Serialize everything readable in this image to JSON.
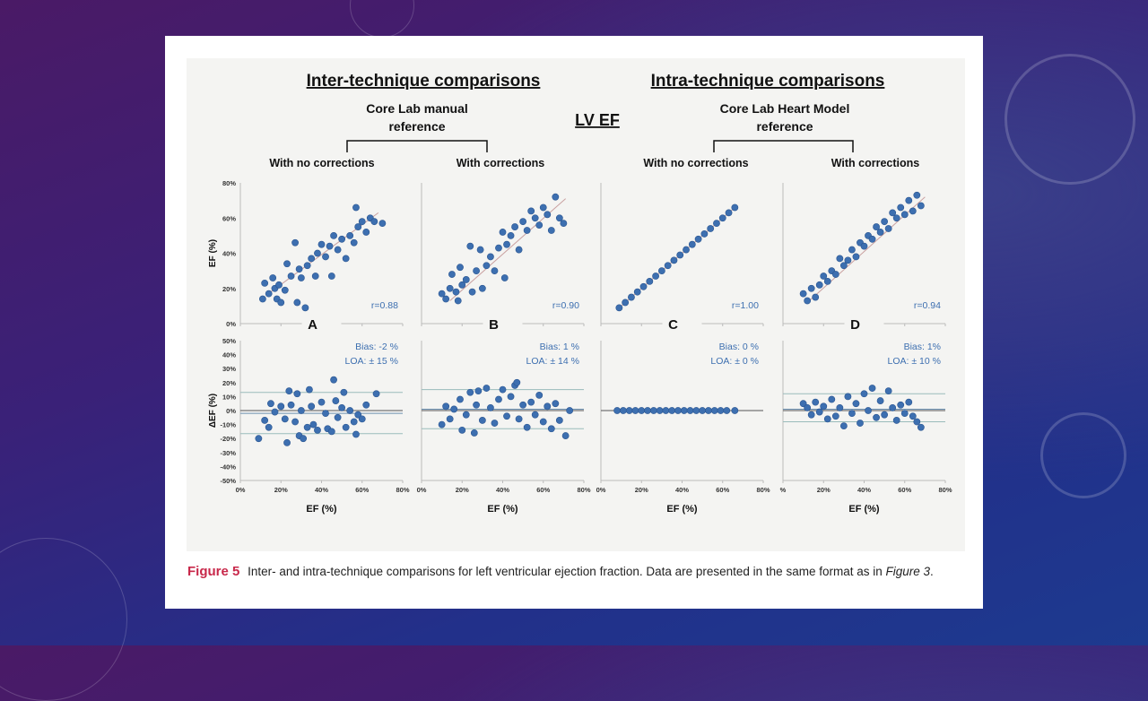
{
  "figure": {
    "inter_title": "Inter-technique comparisons",
    "intra_title": "Intra-technique comparisons",
    "center_label": "LV EF",
    "inter_ref_line1": "Core Lab manual",
    "inter_ref_line2": "reference",
    "intra_ref_line1": "Core Lab Heart Model",
    "intra_ref_line2": "reference",
    "col_labels": [
      "With no corrections",
      "With corrections",
      "With no corrections",
      "With corrections"
    ],
    "caption_label": "Figure 5",
    "caption_text": "Inter- and intra-technique comparisons for left ventricular ejection fraction. Data are presented in the same format as in ",
    "caption_ref": "Figure 3",
    "caption_end": ".",
    "caption_color": "#c8284a",
    "point_color": "#3d6fb0"
  },
  "chart_data": [
    {
      "type": "scatter",
      "panel": "A",
      "ylabel": "EF (%)",
      "ylim": [
        0,
        80
      ],
      "xlim": [
        0,
        80
      ],
      "yticks": [
        "80%",
        "60%",
        "40%",
        "20%",
        "0%"
      ],
      "annotation": "r=0.88",
      "fit": [
        [
          15,
          18
        ],
        [
          68,
          63
        ]
      ],
      "points": [
        [
          11,
          14
        ],
        [
          12,
          23
        ],
        [
          14,
          17
        ],
        [
          16,
          26
        ],
        [
          17,
          20
        ],
        [
          18,
          14
        ],
        [
          19,
          22
        ],
        [
          20,
          12
        ],
        [
          22,
          19
        ],
        [
          23,
          34
        ],
        [
          25,
          27
        ],
        [
          27,
          46
        ],
        [
          28,
          12
        ],
        [
          29,
          31
        ],
        [
          30,
          26
        ],
        [
          32,
          9
        ],
        [
          33,
          33
        ],
        [
          35,
          37
        ],
        [
          37,
          27
        ],
        [
          38,
          40
        ],
        [
          40,
          45
        ],
        [
          42,
          38
        ],
        [
          44,
          44
        ],
        [
          45,
          27
        ],
        [
          46,
          50
        ],
        [
          48,
          42
        ],
        [
          50,
          48
        ],
        [
          52,
          37
        ],
        [
          54,
          50
        ],
        [
          56,
          46
        ],
        [
          57,
          66
        ],
        [
          58,
          55
        ],
        [
          60,
          58
        ],
        [
          62,
          52
        ],
        [
          64,
          60
        ],
        [
          66,
          58
        ],
        [
          70,
          57
        ]
      ]
    },
    {
      "type": "scatter",
      "panel": "B",
      "xlim": [
        0,
        80
      ],
      "ylim": [
        0,
        80
      ],
      "annotation": "r=0.90",
      "fit": [
        [
          14,
          13
        ],
        [
          71,
          71
        ]
      ],
      "points": [
        [
          10,
          17
        ],
        [
          12,
          14
        ],
        [
          14,
          20
        ],
        [
          15,
          28
        ],
        [
          17,
          18
        ],
        [
          18,
          13
        ],
        [
          19,
          32
        ],
        [
          20,
          22
        ],
        [
          22,
          25
        ],
        [
          24,
          44
        ],
        [
          25,
          18
        ],
        [
          27,
          30
        ],
        [
          29,
          42
        ],
        [
          30,
          20
        ],
        [
          32,
          33
        ],
        [
          34,
          38
        ],
        [
          36,
          30
        ],
        [
          38,
          43
        ],
        [
          40,
          52
        ],
        [
          41,
          26
        ],
        [
          42,
          45
        ],
        [
          44,
          50
        ],
        [
          46,
          55
        ],
        [
          48,
          42
        ],
        [
          50,
          58
        ],
        [
          52,
          53
        ],
        [
          54,
          64
        ],
        [
          56,
          60
        ],
        [
          58,
          56
        ],
        [
          60,
          66
        ],
        [
          62,
          62
        ],
        [
          64,
          53
        ],
        [
          66,
          72
        ],
        [
          68,
          60
        ],
        [
          70,
          57
        ]
      ]
    },
    {
      "type": "scatter",
      "panel": "C",
      "xlim": [
        0,
        80
      ],
      "ylim": [
        0,
        80
      ],
      "annotation": "r=1.00",
      "fit": [
        [
          9,
          9
        ],
        [
          66,
          66
        ]
      ],
      "points": [
        [
          9,
          9
        ],
        [
          12,
          12
        ],
        [
          15,
          15
        ],
        [
          18,
          18
        ],
        [
          21,
          21
        ],
        [
          24,
          24
        ],
        [
          27,
          27
        ],
        [
          30,
          30
        ],
        [
          33,
          33
        ],
        [
          36,
          36
        ],
        [
          39,
          39
        ],
        [
          42,
          42
        ],
        [
          45,
          45
        ],
        [
          48,
          48
        ],
        [
          51,
          51
        ],
        [
          54,
          54
        ],
        [
          57,
          57
        ],
        [
          60,
          60
        ],
        [
          63,
          63
        ],
        [
          66,
          66
        ]
      ]
    },
    {
      "type": "scatter",
      "panel": "D",
      "xlim": [
        0,
        80
      ],
      "ylim": [
        0,
        80
      ],
      "annotation": "r=0.94",
      "fit": [
        [
          12,
          12
        ],
        [
          70,
          72
        ]
      ],
      "points": [
        [
          10,
          17
        ],
        [
          12,
          13
        ],
        [
          14,
          20
        ],
        [
          16,
          15
        ],
        [
          18,
          22
        ],
        [
          20,
          27
        ],
        [
          22,
          24
        ],
        [
          24,
          30
        ],
        [
          26,
          28
        ],
        [
          28,
          37
        ],
        [
          30,
          33
        ],
        [
          32,
          36
        ],
        [
          34,
          42
        ],
        [
          36,
          38
        ],
        [
          38,
          46
        ],
        [
          40,
          44
        ],
        [
          42,
          50
        ],
        [
          44,
          48
        ],
        [
          46,
          55
        ],
        [
          48,
          52
        ],
        [
          50,
          58
        ],
        [
          52,
          54
        ],
        [
          54,
          63
        ],
        [
          56,
          60
        ],
        [
          58,
          66
        ],
        [
          60,
          62
        ],
        [
          62,
          70
        ],
        [
          64,
          64
        ],
        [
          66,
          73
        ],
        [
          68,
          67
        ]
      ]
    },
    {
      "type": "scatter",
      "panel": "A-bland-altman",
      "xlabel": "EF (%)",
      "ylabel": "ΔEF (%)",
      "xlim": [
        0,
        80
      ],
      "ylim": [
        -50,
        50
      ],
      "xticks": [
        "0%",
        "20%",
        "40%",
        "60%",
        "80%"
      ],
      "yticks": [
        "50%",
        "40%",
        "30%",
        "20%",
        "10%",
        "0%",
        "-10%",
        "-20%",
        "-30%",
        "-40%",
        "-50%"
      ],
      "bias_text": "Bias: -2 %",
      "loa_text": "LOA: ± 15 %",
      "lines": [
        13,
        -2,
        -16.5
      ],
      "points": [
        [
          9,
          -20
        ],
        [
          12,
          -7
        ],
        [
          14,
          -12
        ],
        [
          15,
          5
        ],
        [
          17,
          -1
        ],
        [
          20,
          3
        ],
        [
          22,
          -6
        ],
        [
          23,
          -23
        ],
        [
          24,
          14
        ],
        [
          25,
          4
        ],
        [
          27,
          -8
        ],
        [
          28,
          12
        ],
        [
          29,
          -18
        ],
        [
          30,
          0
        ],
        [
          31,
          -20
        ],
        [
          33,
          -12
        ],
        [
          34,
          15
        ],
        [
          35,
          3
        ],
        [
          36,
          -10
        ],
        [
          38,
          -14
        ],
        [
          40,
          6
        ],
        [
          42,
          -2
        ],
        [
          43,
          -13
        ],
        [
          45,
          -15
        ],
        [
          46,
          22
        ],
        [
          47,
          7
        ],
        [
          48,
          -5
        ],
        [
          50,
          2
        ],
        [
          51,
          13
        ],
        [
          52,
          -12
        ],
        [
          54,
          0
        ],
        [
          56,
          -8
        ],
        [
          57,
          -17
        ],
        [
          58,
          -3
        ],
        [
          60,
          -6
        ],
        [
          62,
          4
        ],
        [
          67,
          12
        ]
      ]
    },
    {
      "type": "scatter",
      "panel": "B-bland-altman",
      "xlabel": "EF (%)",
      "xlim": [
        0,
        80
      ],
      "ylim": [
        -50,
        50
      ],
      "xticks": [
        "0%",
        "20%",
        "40%",
        "60%",
        "80%"
      ],
      "bias_text": "Bias: 1 %",
      "loa_text": "LOA: ± 14 %",
      "lines": [
        15,
        1,
        -13
      ],
      "points": [
        [
          10,
          -10
        ],
        [
          12,
          3
        ],
        [
          14,
          -6
        ],
        [
          16,
          1
        ],
        [
          19,
          8
        ],
        [
          20,
          -14
        ],
        [
          22,
          -3
        ],
        [
          24,
          13
        ],
        [
          26,
          -16
        ],
        [
          27,
          4
        ],
        [
          28,
          14
        ],
        [
          30,
          -7
        ],
        [
          32,
          16
        ],
        [
          34,
          2
        ],
        [
          36,
          -9
        ],
        [
          38,
          8
        ],
        [
          40,
          15
        ],
        [
          42,
          -4
        ],
        [
          44,
          10
        ],
        [
          46,
          18
        ],
        [
          47,
          20
        ],
        [
          48,
          -6
        ],
        [
          50,
          4
        ],
        [
          52,
          -12
        ],
        [
          54,
          6
        ],
        [
          56,
          -3
        ],
        [
          58,
          11
        ],
        [
          60,
          -8
        ],
        [
          62,
          3
        ],
        [
          64,
          -13
        ],
        [
          66,
          5
        ],
        [
          68,
          -7
        ],
        [
          71,
          -18
        ],
        [
          73,
          0
        ]
      ]
    },
    {
      "type": "scatter",
      "panel": "C-bland-altman",
      "xlabel": "EF (%)",
      "xlim": [
        0,
        80
      ],
      "ylim": [
        -50,
        50
      ],
      "xticks": [
        "0%",
        "20%",
        "40%",
        "60%",
        "80%"
      ],
      "bias_text": "Bias: 0 %",
      "loa_text": "LOA: ± 0 %",
      "lines": [
        0
      ],
      "points": [
        [
          8,
          0
        ],
        [
          11,
          0
        ],
        [
          14,
          0
        ],
        [
          17,
          0
        ],
        [
          20,
          0
        ],
        [
          23,
          0
        ],
        [
          26,
          0
        ],
        [
          29,
          0
        ],
        [
          32,
          0
        ],
        [
          35,
          0
        ],
        [
          38,
          0
        ],
        [
          41,
          0
        ],
        [
          44,
          0
        ],
        [
          47,
          0
        ],
        [
          50,
          0
        ],
        [
          53,
          0
        ],
        [
          56,
          0
        ],
        [
          59,
          0
        ],
        [
          62,
          0
        ],
        [
          66,
          0
        ]
      ]
    },
    {
      "type": "scatter",
      "panel": "D-bland-altman",
      "xlabel": "EF (%)",
      "xlim": [
        0,
        80
      ],
      "ylim": [
        -50,
        50
      ],
      "xticks": [
        "%",
        "20%",
        "40%",
        "60%",
        "80%"
      ],
      "bias_text": "Bias: 1%",
      "loa_text": "LOA: ± 10 %",
      "lines": [
        12,
        1,
        -8
      ],
      "points": [
        [
          10,
          5
        ],
        [
          12,
          2
        ],
        [
          14,
          -3
        ],
        [
          16,
          6
        ],
        [
          18,
          -1
        ],
        [
          20,
          3
        ],
        [
          22,
          -6
        ],
        [
          24,
          8
        ],
        [
          26,
          -4
        ],
        [
          28,
          2
        ],
        [
          30,
          -11
        ],
        [
          32,
          10
        ],
        [
          34,
          -2
        ],
        [
          36,
          5
        ],
        [
          38,
          -9
        ],
        [
          40,
          12
        ],
        [
          42,
          0
        ],
        [
          44,
          16
        ],
        [
          46,
          -5
        ],
        [
          48,
          7
        ],
        [
          50,
          -3
        ],
        [
          52,
          14
        ],
        [
          54,
          2
        ],
        [
          56,
          -7
        ],
        [
          58,
          4
        ],
        [
          60,
          -2
        ],
        [
          62,
          6
        ],
        [
          64,
          -4
        ],
        [
          66,
          -8
        ],
        [
          68,
          -12
        ]
      ]
    }
  ]
}
